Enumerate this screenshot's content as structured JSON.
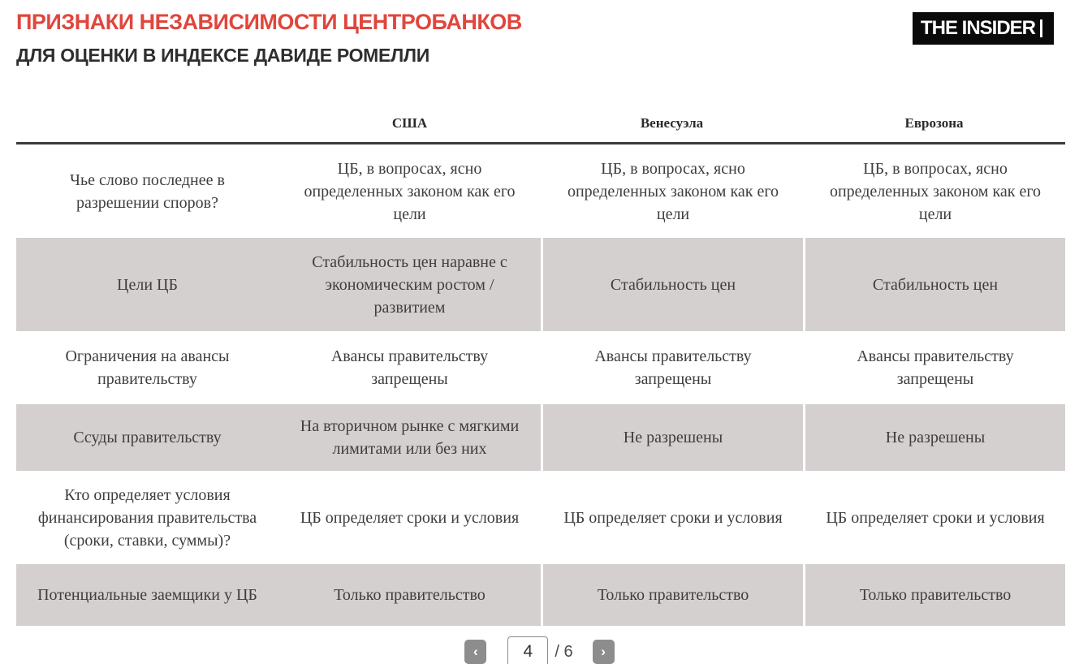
{
  "header": {
    "title": "ПРИЗНАКИ НЕЗАВИСИМОСТИ ЦЕНТРОБАНКОВ",
    "subtitle": "ДЛЯ ОЦЕНКИ В ИНДЕКСЕ ДАВИДЕ РОМЕЛЛИ",
    "logo_text": "THE INSIDER",
    "accent_color": "#e0463c"
  },
  "table": {
    "columns": [
      "США",
      "Венесуэла",
      "Еврозона"
    ],
    "shaded_row_color": "#d4d0cf",
    "rows": [
      {
        "label": "Чье слово последнее в разрешении споров?",
        "cells": [
          "ЦБ, в вопросах, ясно определенных законом как его цели",
          "ЦБ, в вопросах, ясно определенных законом как его цели",
          "ЦБ, в вопросах, ясно определенных законом как его цели"
        ]
      },
      {
        "label": "Цели ЦБ",
        "cells": [
          "Стабильность цен наравне с экономическим ростом / развитием",
          "Стабильность цен",
          "Стабильность цен"
        ]
      },
      {
        "label": "Ограничения на авансы правительству",
        "cells": [
          "Авансы правительству запрещены",
          "Авансы правительству запрещены",
          "Авансы правительству запрещены"
        ]
      },
      {
        "label": "Ссуды правительству",
        "cells": [
          "На вторичном рынке с мягкими лимитами или без них",
          "Не разрешены",
          "Не разрешены"
        ]
      },
      {
        "label": "Кто определяет условия финансирования правительства (сроки, ставки, суммы)?",
        "cells": [
          "ЦБ определяет сроки и условия",
          "ЦБ определяет сроки и условия",
          "ЦБ определяет сроки и условия"
        ]
      },
      {
        "label": "Потенциальные заемщики у ЦБ",
        "cells": [
          "Только правительство",
          "Только правительство",
          "Только правительство"
        ]
      }
    ]
  },
  "pagination": {
    "current_page": "4",
    "total_label": "/ 6",
    "prev_icon": "‹",
    "next_icon": "›"
  }
}
